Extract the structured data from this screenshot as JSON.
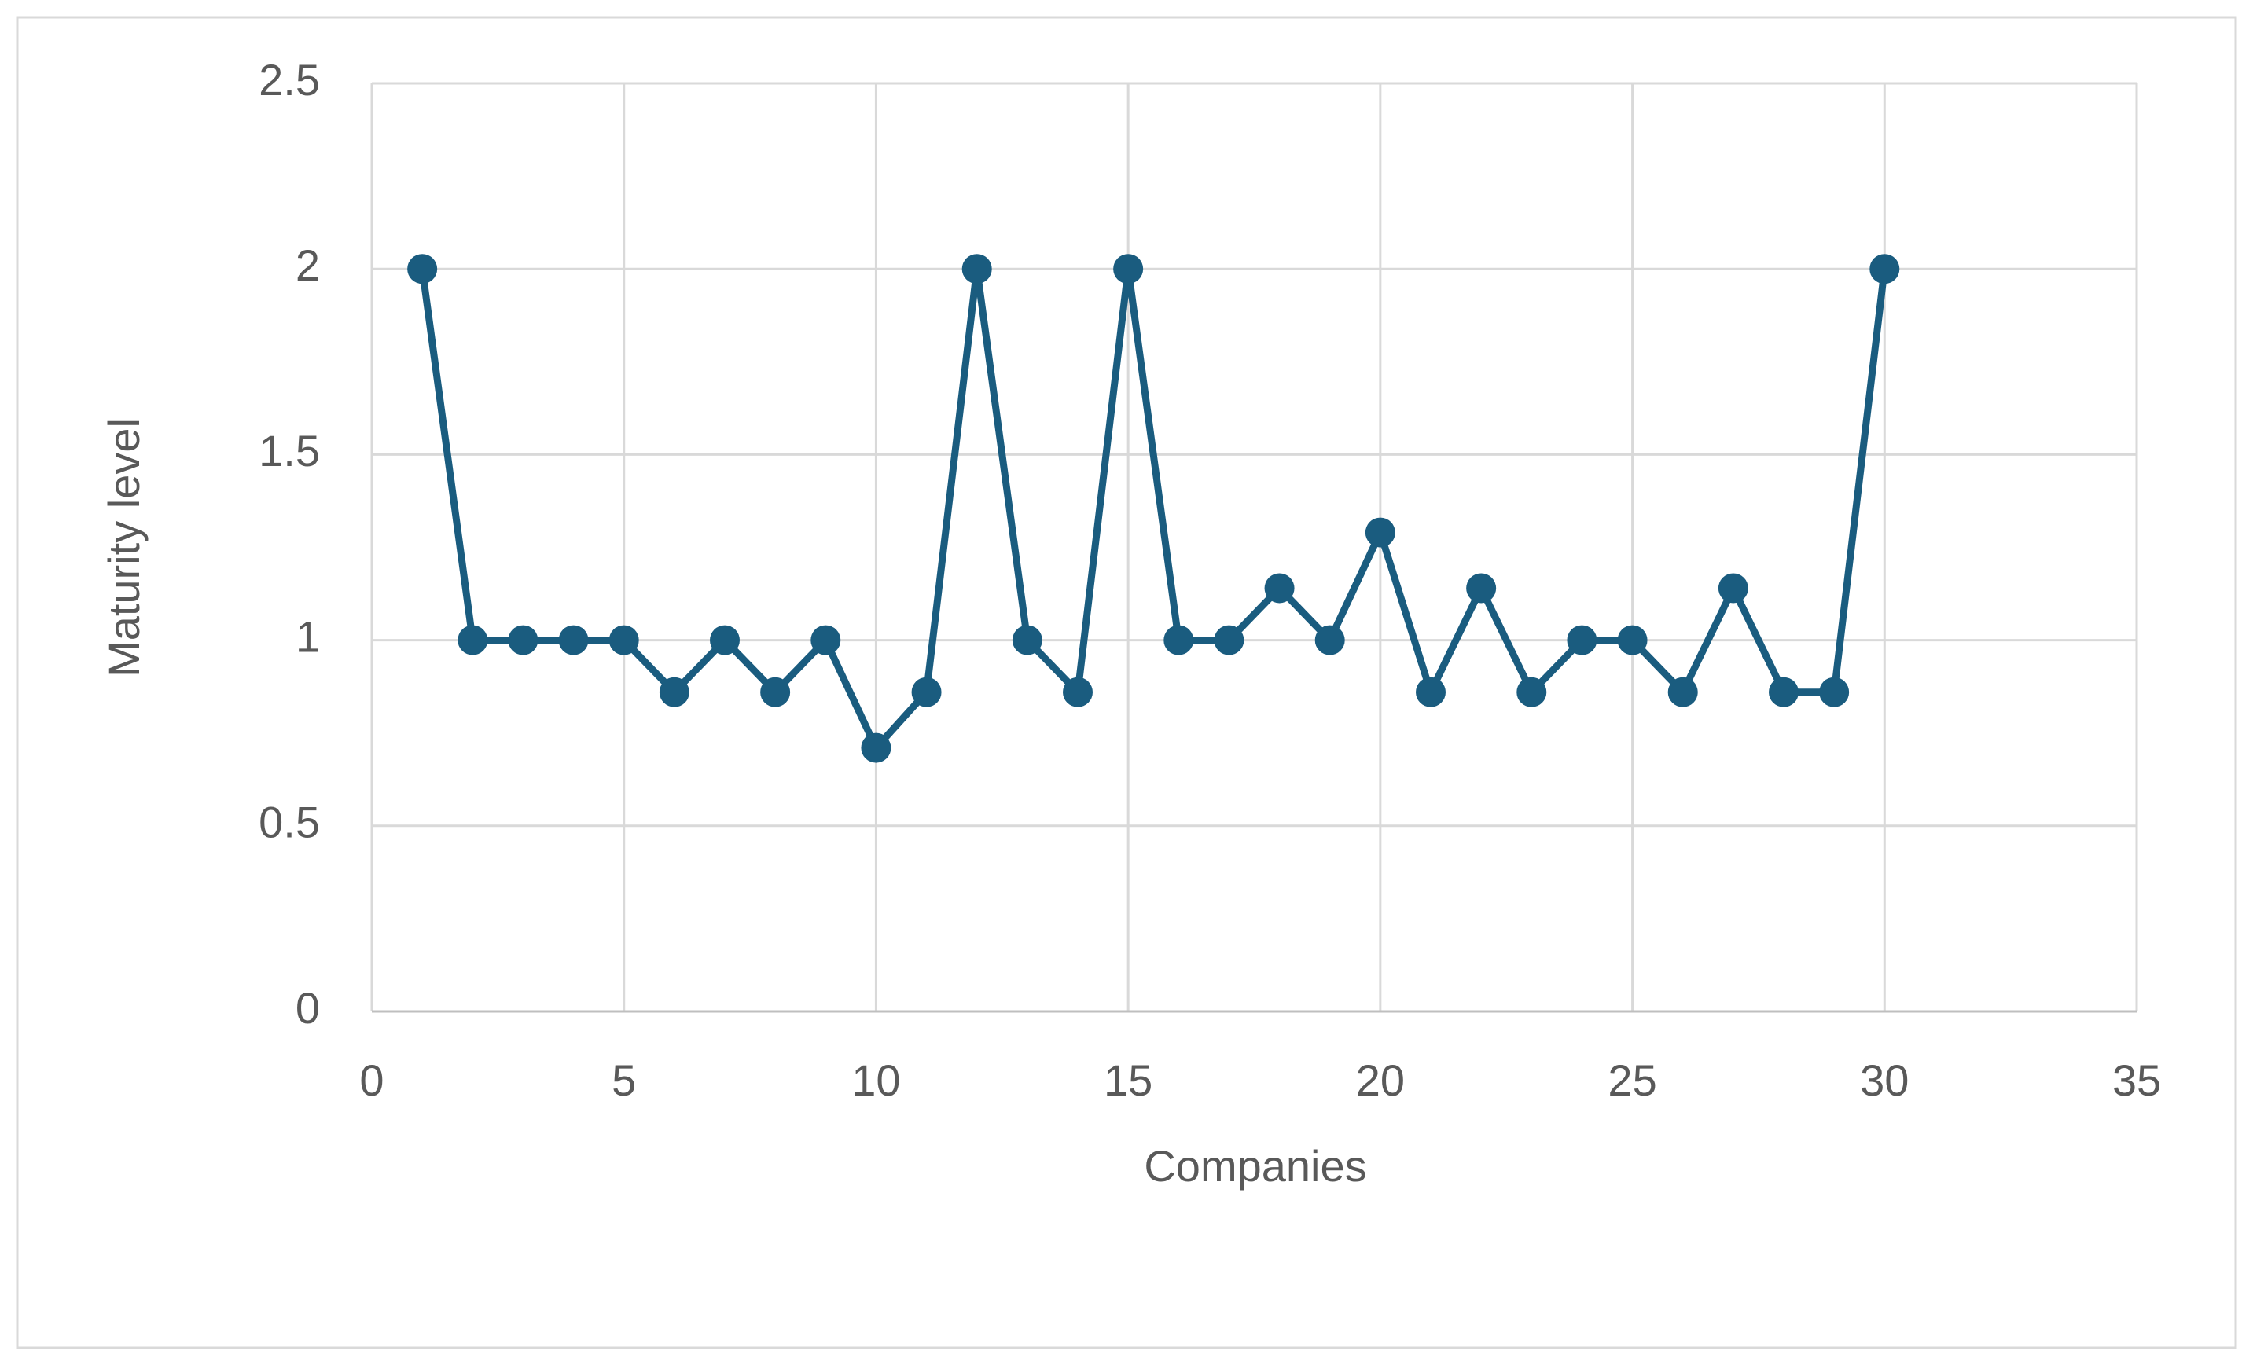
{
  "chart_data": {
    "type": "line",
    "x_label": "Companies",
    "y_label": "Maturity level",
    "x": [
      1,
      2,
      3,
      4,
      5,
      6,
      7,
      8,
      9,
      10,
      11,
      12,
      13,
      14,
      15,
      16,
      17,
      18,
      19,
      20,
      21,
      22,
      23,
      24,
      25,
      26,
      27,
      28,
      29,
      30
    ],
    "values": [
      2,
      1,
      1,
      1,
      1,
      0.86,
      1,
      0.86,
      1,
      0.71,
      0.86,
      2,
      1,
      0.86,
      2,
      1,
      1,
      1.14,
      1,
      1.29,
      0.86,
      1.14,
      0.86,
      1,
      1,
      0.86,
      1.14,
      0.86,
      0.86,
      2
    ],
    "color": "#1a5c7f",
    "xlim": [
      0,
      35
    ],
    "xticks": [
      0,
      5,
      10,
      15,
      20,
      25,
      30,
      35
    ],
    "ylim": [
      0,
      2.5
    ],
    "yticks": [
      0,
      0.5,
      1,
      1.5,
      2,
      2.5
    ],
    "grid": true
  }
}
